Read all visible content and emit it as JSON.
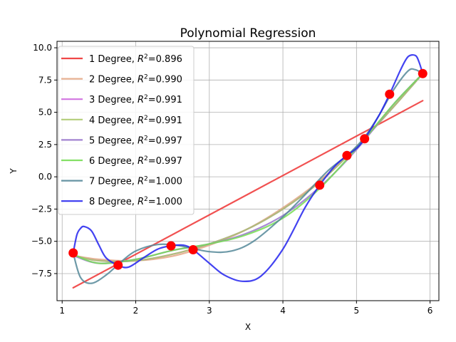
{
  "chart_data": {
    "type": "line",
    "title": "Polynomial Regression",
    "xlabel": "X",
    "ylabel": "Y",
    "xlim": [
      0.93,
      6.12
    ],
    "ylim": [
      -9.6,
      10.5
    ],
    "xticks": [
      1,
      2,
      3,
      4,
      5,
      6
    ],
    "yticks": [
      -7.5,
      -5.0,
      -2.5,
      0.0,
      2.5,
      5.0,
      7.5,
      10.0
    ],
    "xtick_labels": [
      "1",
      "2",
      "3",
      "4",
      "5",
      "6"
    ],
    "ytick_labels": [
      "−7.5",
      "−5.0",
      "−2.5",
      "0.0",
      "2.5",
      "5.0",
      "7.5",
      "10.0"
    ],
    "grid": true,
    "legend_position": "upper-left",
    "points": {
      "color": "#ff0000",
      "x": [
        1.15,
        1.76,
        2.48,
        2.78,
        4.5,
        4.87,
        5.11,
        5.45,
        5.9
      ],
      "y": [
        -5.9,
        -6.85,
        -5.35,
        -5.65,
        -0.65,
        1.65,
        2.95,
        6.4,
        8.0
      ]
    },
    "series": [
      {
        "name": "1 Degree",
        "r2": "0.896",
        "color": "#ee3333",
        "x": [
          1.15,
          5.9
        ],
        "y": [
          -8.6,
          5.9
        ]
      },
      {
        "name": "2 Degree",
        "r2": "0.990",
        "color": "#e4a786",
        "x": [
          1.15,
          1.5,
          2.0,
          2.5,
          3.0,
          3.5,
          4.0,
          4.5,
          5.0,
          5.5,
          5.9
        ],
        "y": [
          -6.1,
          -6.4,
          -6.5,
          -6.15,
          -5.3,
          -4.1,
          -2.4,
          -0.3,
          2.3,
          5.4,
          8.0
        ]
      },
      {
        "name": "3 Degree",
        "r2": "0.991",
        "color": "#cc66dd",
        "x": [
          1.15,
          1.5,
          2.0,
          2.5,
          3.0,
          3.5,
          4.0,
          4.5,
          5.0,
          5.5,
          5.9
        ],
        "y": [
          -6.1,
          -6.5,
          -6.5,
          -6.0,
          -5.2,
          -4.1,
          -2.5,
          -0.4,
          2.3,
          5.4,
          8.0
        ]
      },
      {
        "name": "4 Degree",
        "r2": "0.991",
        "color": "#aac86a",
        "x": [
          1.15,
          1.5,
          2.0,
          2.5,
          3.0,
          3.5,
          4.0,
          4.5,
          5.0,
          5.5,
          5.9
        ],
        "y": [
          -6.1,
          -6.5,
          -6.5,
          -6.0,
          -5.2,
          -4.1,
          -2.5,
          -0.4,
          2.3,
          5.4,
          8.0
        ]
      },
      {
        "name": "5 Degree",
        "r2": "0.997",
        "color": "#9977cc",
        "x": [
          1.15,
          1.5,
          2.0,
          2.5,
          3.0,
          3.5,
          4.0,
          4.5,
          5.0,
          5.5,
          5.9
        ],
        "y": [
          -6.1,
          -6.7,
          -6.4,
          -5.7,
          -5.2,
          -4.4,
          -3.0,
          -0.8,
          2.1,
          5.6,
          8.0
        ]
      },
      {
        "name": "6 Degree",
        "r2": "0.997",
        "color": "#77dd55",
        "x": [
          1.15,
          1.5,
          2.0,
          2.5,
          3.0,
          3.5,
          4.0,
          4.5,
          5.0,
          5.5,
          5.9
        ],
        "y": [
          -6.0,
          -6.7,
          -6.4,
          -5.7,
          -5.2,
          -4.5,
          -3.2,
          -0.9,
          2.2,
          5.6,
          8.0
        ]
      },
      {
        "name": "7 Degree",
        "r2": "1.000",
        "color": "#558899",
        "x": [
          1.15,
          1.25,
          1.4,
          1.6,
          1.8,
          2.0,
          2.3,
          2.6,
          3.0,
          3.3,
          3.6,
          4.0,
          4.3,
          4.6,
          4.9,
          5.1,
          5.3,
          5.5,
          5.7,
          5.8,
          5.9
        ],
        "y": [
          -5.9,
          -7.8,
          -8.25,
          -7.6,
          -6.6,
          -5.75,
          -5.25,
          -5.35,
          -5.8,
          -5.75,
          -5.0,
          -3.1,
          -1.4,
          0.4,
          1.8,
          3.0,
          4.7,
          6.7,
          8.2,
          8.3,
          8.0
        ]
      },
      {
        "name": "8 Degree",
        "r2": "1.000",
        "color": "#2222ee",
        "x": [
          1.15,
          1.2,
          1.25,
          1.3,
          1.4,
          1.5,
          1.6,
          1.76,
          1.9,
          2.1,
          2.3,
          2.48,
          2.65,
          2.78,
          3.0,
          3.2,
          3.45,
          3.7,
          4.0,
          4.3,
          4.5,
          4.7,
          4.87,
          5.0,
          5.11,
          5.3,
          5.45,
          5.6,
          5.7,
          5.8,
          5.85,
          5.9
        ],
        "y": [
          -5.9,
          -4.5,
          -4.0,
          -3.85,
          -4.2,
          -5.3,
          -6.3,
          -6.85,
          -7.0,
          -6.3,
          -5.6,
          -5.35,
          -5.3,
          -5.65,
          -6.7,
          -7.6,
          -8.1,
          -7.7,
          -5.6,
          -2.4,
          -0.65,
          0.8,
          1.65,
          2.2,
          2.95,
          4.7,
          6.4,
          8.3,
          9.3,
          9.4,
          8.9,
          8.0
        ]
      }
    ]
  }
}
